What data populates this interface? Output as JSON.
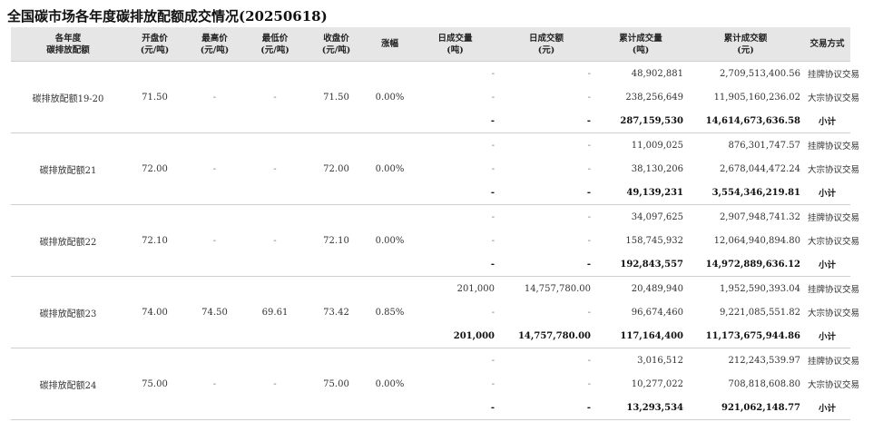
{
  "title": "全国碳市场各年度碳排放配额成交情况(20250618)",
  "headers": [
    [
      "各年度",
      "碳排放配额"
    ],
    [
      "开盘价",
      "(元/吨)"
    ],
    [
      "最高价",
      "(元/吨)"
    ],
    [
      "最低价",
      "(元/吨)"
    ],
    [
      "收盘价",
      "(元/吨)"
    ],
    [
      "涨幅"
    ],
    [
      "日成交量",
      "(吨)"
    ],
    [
      "日成交额",
      "(元)"
    ],
    [
      "累计成交量",
      "(吨)"
    ],
    [
      "累计成交额",
      "(元)"
    ],
    [
      "交易方式"
    ]
  ],
  "groups": [
    {
      "name": "碳排放配额19-20",
      "open": "71.50",
      "high": "-",
      "low": "-",
      "close": "71.50",
      "change": "0.00%",
      "rows": [
        {
          "vol": "-",
          "amt": "-",
          "cum_vol": "48,902,881",
          "cum_amt": "2,709,513,400.56",
          "mode": "挂牌协议交易"
        },
        {
          "vol": "-",
          "amt": "-",
          "cum_vol": "238,256,649",
          "cum_amt": "11,905,160,236.02",
          "mode": "大宗协议交易"
        },
        {
          "vol": "-",
          "amt": "-",
          "cum_vol": "287,159,530",
          "cum_amt": "14,614,673,636.58",
          "mode": "小计"
        }
      ]
    },
    {
      "name": "碳排放配额21",
      "open": "72.00",
      "high": "-",
      "low": "-",
      "close": "72.00",
      "change": "0.00%",
      "rows": [
        {
          "vol": "-",
          "amt": "-",
          "cum_vol": "11,009,025",
          "cum_amt": "876,301,747.57",
          "mode": "挂牌协议交易"
        },
        {
          "vol": "-",
          "amt": "-",
          "cum_vol": "38,130,206",
          "cum_amt": "2,678,044,472.24",
          "mode": "大宗协议交易"
        },
        {
          "vol": "-",
          "amt": "-",
          "cum_vol": "49,139,231",
          "cum_amt": "3,554,346,219.81",
          "mode": "小计"
        }
      ]
    },
    {
      "name": "碳排放配额22",
      "open": "72.10",
      "high": "-",
      "low": "-",
      "close": "72.10",
      "change": "0.00%",
      "rows": [
        {
          "vol": "-",
          "amt": "-",
          "cum_vol": "34,097,625",
          "cum_amt": "2,907,948,741.32",
          "mode": "挂牌协议交易"
        },
        {
          "vol": "-",
          "amt": "-",
          "cum_vol": "158,745,932",
          "cum_amt": "12,064,940,894.80",
          "mode": "大宗协议交易"
        },
        {
          "vol": "-",
          "amt": "-",
          "cum_vol": "192,843,557",
          "cum_amt": "14,972,889,636.12",
          "mode": "小计"
        }
      ]
    },
    {
      "name": "碳排放配额23",
      "open": "74.00",
      "high": "74.50",
      "low": "69.61",
      "close": "73.42",
      "change": "0.85%",
      "rows": [
        {
          "vol": "201,000",
          "amt": "14,757,780.00",
          "cum_vol": "20,489,940",
          "cum_amt": "1,952,590,393.04",
          "mode": "挂牌协议交易"
        },
        {
          "vol": "-",
          "amt": "-",
          "cum_vol": "96,674,460",
          "cum_amt": "9,221,085,551.82",
          "mode": "大宗协议交易"
        },
        {
          "vol": "201,000",
          "amt": "14,757,780.00",
          "cum_vol": "117,164,400",
          "cum_amt": "11,173,675,944.86",
          "mode": "小计"
        }
      ]
    },
    {
      "name": "碳排放配额24",
      "open": "75.00",
      "high": "-",
      "low": "-",
      "close": "75.00",
      "change": "0.00%",
      "rows": [
        {
          "vol": "-",
          "amt": "-",
          "cum_vol": "3,016,512",
          "cum_amt": "212,243,539.97",
          "mode": "挂牌协议交易"
        },
        {
          "vol": "-",
          "amt": "-",
          "cum_vol": "10,277,022",
          "cum_amt": "708,818,608.80",
          "mode": "大宗协议交易"
        },
        {
          "vol": "-",
          "amt": "-",
          "cum_vol": "13,293,534",
          "cum_amt": "921,062,148.77",
          "mode": "小计"
        }
      ]
    }
  ]
}
